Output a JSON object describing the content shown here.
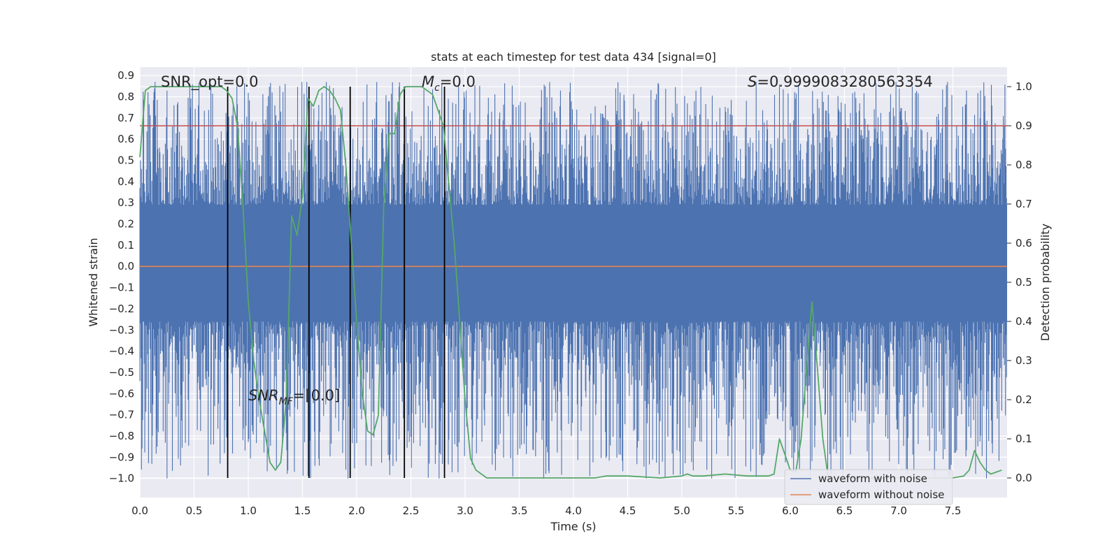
{
  "chart_data": {
    "type": "line",
    "title": "stats at each timestep for test data 434 [signal=0]",
    "xlabel": "Time (s)",
    "ylabel": "Whitened strain",
    "ylabel_right": "Detection probability",
    "xlim": [
      0.0,
      8.0
    ],
    "ylim": [
      -1.09,
      0.94
    ],
    "ylim_right": [
      -0.05,
      1.05
    ],
    "x_ticks": [
      "0.0",
      "0.5",
      "1.0",
      "1.5",
      "2.0",
      "2.5",
      "3.0",
      "3.5",
      "4.0",
      "4.5",
      "5.0",
      "5.5",
      "6.0",
      "6.5",
      "7.0",
      "7.5"
    ],
    "y_ticks": [
      "0.9",
      "0.8",
      "0.7",
      "0.6",
      "0.5",
      "0.4",
      "0.3",
      "0.2",
      "0.1",
      "0.0",
      "−0.1",
      "−0.2",
      "−0.3",
      "−0.4",
      "−0.5",
      "−0.6",
      "−0.7",
      "−0.8",
      "−0.9",
      "−1.0"
    ],
    "y_ticks_right": [
      "1.0",
      "0.9",
      "0.8",
      "0.7",
      "0.6",
      "0.5",
      "0.4",
      "0.3",
      "0.2",
      "0.1",
      "0.0"
    ],
    "grid": true,
    "legend_position": "lower-right",
    "threshold": 0.9,
    "vertical_lines": [
      0.81,
      1.56,
      1.94,
      2.44,
      2.81
    ],
    "annotations": {
      "snr_opt": "SNR_opt=0.0",
      "mc_symbol": "M",
      "mc_sub": "c",
      "mc_value": "=0.0",
      "s_symbol": "S",
      "s_value": "=0.9999083280563354",
      "snr_mf_symbol": "SNR",
      "snr_mf_sub": "MF",
      "snr_mf_value": "=[0.0]"
    },
    "series": [
      {
        "name": "waveform with noise",
        "color": "#4c72b0",
        "band_low": -0.26,
        "band_high": 0.29,
        "spike_max": 0.87,
        "spike_min": -1.0
      },
      {
        "name": "waveform without noise",
        "color": "#dd8452",
        "values_constant": 0.0
      },
      {
        "name": "",
        "color": "#55a868",
        "axis": "right",
        "x": [
          0.0,
          0.05,
          0.1,
          0.2,
          0.3,
          0.4,
          0.5,
          0.6,
          0.7,
          0.75,
          0.8,
          0.85,
          0.9,
          0.95,
          1.0,
          1.05,
          1.1,
          1.15,
          1.2,
          1.25,
          1.3,
          1.35,
          1.4,
          1.45,
          1.5,
          1.55,
          1.6,
          1.65,
          1.7,
          1.75,
          1.8,
          1.85,
          1.9,
          1.95,
          2.0,
          2.05,
          2.1,
          2.15,
          2.2,
          2.25,
          2.3,
          2.35,
          2.4,
          2.45,
          2.5,
          2.55,
          2.6,
          2.7,
          2.8,
          2.85,
          2.9,
          2.95,
          3.0,
          3.05,
          3.1,
          3.15,
          3.2,
          3.3,
          3.5,
          3.7,
          4.0,
          4.2,
          4.3,
          4.5,
          4.8,
          5.0,
          5.05,
          5.1,
          5.2,
          5.4,
          5.6,
          5.8,
          5.85,
          5.9,
          5.95,
          6.0,
          6.05,
          6.1,
          6.15,
          6.2,
          6.25,
          6.3,
          6.35,
          6.4,
          6.5,
          7.0,
          7.5,
          7.6,
          7.65,
          7.7,
          7.75,
          7.8,
          7.85,
          7.9,
          7.95
        ],
        "values": [
          0.82,
          0.99,
          1.0,
          1.0,
          1.0,
          1.0,
          1.0,
          1.0,
          1.0,
          1.0,
          0.99,
          0.97,
          0.9,
          0.7,
          0.45,
          0.3,
          0.2,
          0.12,
          0.04,
          0.02,
          0.04,
          0.2,
          0.67,
          0.62,
          0.72,
          0.97,
          0.95,
          0.99,
          1.0,
          0.99,
          0.97,
          0.94,
          0.8,
          0.6,
          0.4,
          0.22,
          0.12,
          0.11,
          0.16,
          0.7,
          0.88,
          0.88,
          0.98,
          1.0,
          1.0,
          1.0,
          1.0,
          0.98,
          0.9,
          0.75,
          0.6,
          0.4,
          0.2,
          0.05,
          0.02,
          0.01,
          0.0,
          0.0,
          0.0,
          0.0,
          0.0,
          0.0,
          0.005,
          0.005,
          0.0,
          0.005,
          0.01,
          0.005,
          0.005,
          0.01,
          0.005,
          0.005,
          0.01,
          0.1,
          0.06,
          0.02,
          0.015,
          0.1,
          0.28,
          0.45,
          0.28,
          0.1,
          0.0,
          0.0,
          0.0,
          0.0,
          0.0,
          0.005,
          0.02,
          0.07,
          0.04,
          0.02,
          0.01,
          0.015,
          0.02
        ]
      }
    ],
    "colors": {
      "background": "#eaeaf2",
      "grid": "#ffffff",
      "threshold": "#c44e52",
      "vline": "#000000"
    }
  }
}
